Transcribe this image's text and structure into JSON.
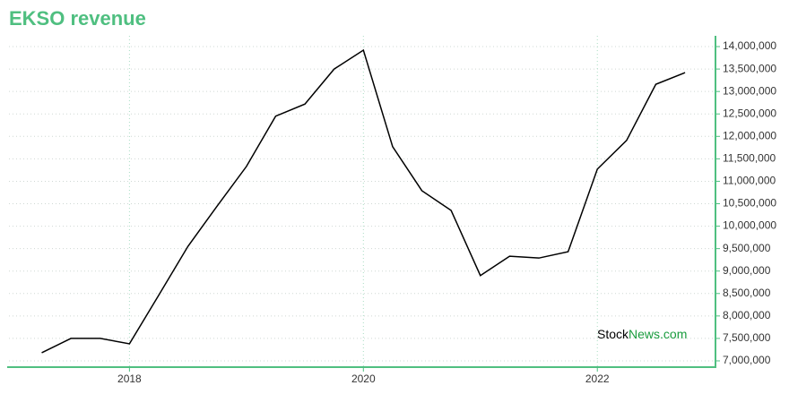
{
  "chart_data": {
    "type": "line",
    "title": "EKSO revenue",
    "x": [
      2017.25,
      2017.5,
      2017.75,
      2018.0,
      2018.25,
      2018.5,
      2018.75,
      2019.0,
      2019.25,
      2019.5,
      2019.75,
      2020.0,
      2020.25,
      2020.5,
      2020.75,
      2021.0,
      2021.25,
      2021.5,
      2021.75,
      2022.0,
      2022.25,
      2022.5,
      2022.75
    ],
    "series": [
      {
        "name": "EKSO revenue",
        "color": "#000000",
        "values": [
          7180000,
          7500000,
          7500000,
          7380000,
          8460000,
          9550000,
          10450000,
          11330000,
          12450000,
          12720000,
          13500000,
          13920000,
          11770000,
          10790000,
          10350000,
          8900000,
          9330000,
          9290000,
          9430000,
          11270000,
          11910000,
          13160000,
          13420000
        ]
      }
    ],
    "xlim": [
      2016.97,
      2023.01
    ],
    "xticks": [
      2018,
      2020,
      2022
    ],
    "ylim": [
      6860000,
      14240000
    ],
    "yticks": [
      {
        "value": 7000000,
        "label": "7,000,000"
      },
      {
        "value": 7500000,
        "label": "7,500,000"
      },
      {
        "value": 8000000,
        "label": "8,000,000"
      },
      {
        "value": 8500000,
        "label": "8,500,000"
      },
      {
        "value": 9000000,
        "label": "9,000,000"
      },
      {
        "value": 9500000,
        "label": "9,500,000"
      },
      {
        "value": 10000000,
        "label": "10,000,000"
      },
      {
        "value": 10500000,
        "label": "10,500,000"
      },
      {
        "value": 11000000,
        "label": "11,000,000"
      },
      {
        "value": 11500000,
        "label": "11,500,000"
      },
      {
        "value": 12000000,
        "label": "12,000,000"
      },
      {
        "value": 12500000,
        "label": "12,500,000"
      },
      {
        "value": 13000000,
        "label": "13,000,000"
      },
      {
        "value": 13500000,
        "label": "13,500,000"
      },
      {
        "value": 14000000,
        "label": "14,000,000"
      }
    ],
    "grid": true,
    "watermark": [
      "Stock",
      "News.com"
    ],
    "watermark_colors": [
      "#000000",
      "#1a9c3e"
    ]
  }
}
